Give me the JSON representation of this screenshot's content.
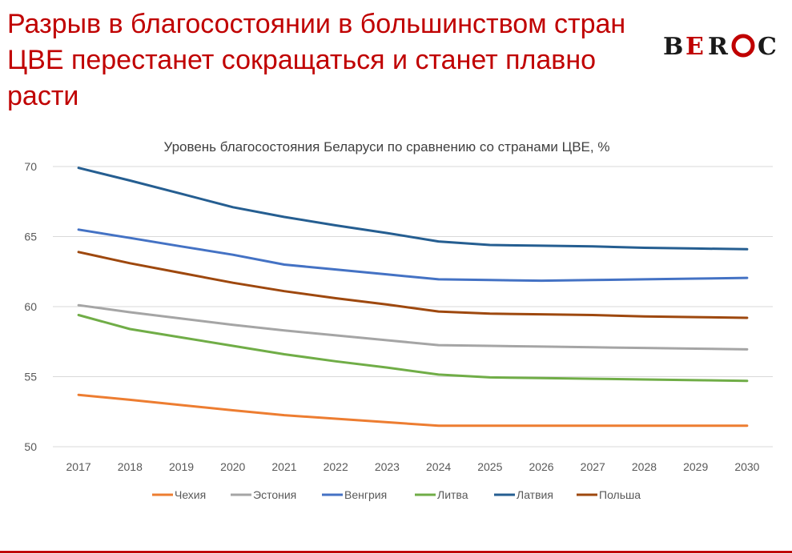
{
  "slide": {
    "title": "Разрыв в благосостоянии в большинством стран ЦВЕ перестанет сокращаться и станет плавно расти",
    "logo_text": "BEROC",
    "accent_color": "#c00000"
  },
  "chart_data": {
    "type": "line",
    "title": "Уровень благосостояния Беларуси по сравнению со странами ЦВЕ, %",
    "xlabel": "",
    "ylabel": "",
    "categories": [
      "2017",
      "2018",
      "2019",
      "2020",
      "2021",
      "2022",
      "2023",
      "2024",
      "2025",
      "2026",
      "2027",
      "2028",
      "2029",
      "2030"
    ],
    "ylim": [
      50,
      70
    ],
    "yticks": [
      50,
      55,
      60,
      65,
      70
    ],
    "grid": true,
    "legend_position": "bottom",
    "series": [
      {
        "name": "Чехия",
        "color": "#ed7d31",
        "values": [
          53.7,
          53.35,
          52.97,
          52.6,
          52.25,
          52.0,
          51.75,
          51.5,
          51.5,
          51.5,
          51.5,
          51.5,
          51.5,
          51.5
        ]
      },
      {
        "name": "Эстония",
        "color": "#a5a5a5",
        "values": [
          60.1,
          59.6,
          59.15,
          58.7,
          58.3,
          57.95,
          57.6,
          57.25,
          57.2,
          57.15,
          57.1,
          57.05,
          57.0,
          56.95
        ]
      },
      {
        "name": "Венгрия",
        "color": "#4472c4",
        "values": [
          65.5,
          64.9,
          64.3,
          63.7,
          63.0,
          62.65,
          62.3,
          61.95,
          61.9,
          61.85,
          61.9,
          61.95,
          62.0,
          62.05
        ]
      },
      {
        "name": "Литва",
        "color": "#70ad47",
        "values": [
          59.4,
          58.4,
          57.8,
          57.2,
          56.6,
          56.1,
          55.65,
          55.15,
          54.95,
          54.9,
          54.85,
          54.8,
          54.75,
          54.7
        ]
      },
      {
        "name": "Латвия",
        "color": "#255e91",
        "values": [
          69.9,
          69.0,
          68.05,
          67.1,
          66.4,
          65.8,
          65.25,
          64.65,
          64.4,
          64.35,
          64.3,
          64.2,
          64.15,
          64.1
        ]
      },
      {
        "name": "Польша",
        "color": "#9e480e",
        "values": [
          63.9,
          63.1,
          62.4,
          61.7,
          61.1,
          60.6,
          60.15,
          59.65,
          59.5,
          59.45,
          59.4,
          59.3,
          59.25,
          59.2
        ]
      }
    ]
  }
}
